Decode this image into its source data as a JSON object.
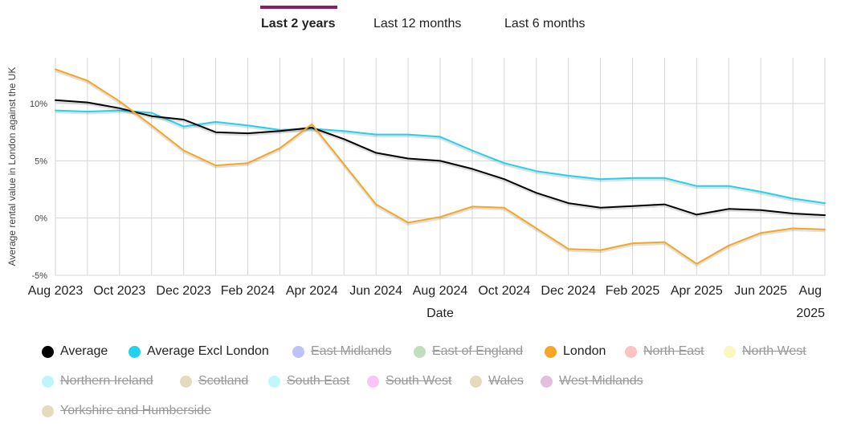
{
  "tabs": [
    {
      "label": "Last 2 years",
      "active": true
    },
    {
      "label": "Last 12 months",
      "active": false
    },
    {
      "label": "Last 6 months",
      "active": false
    }
  ],
  "accent_color": "#8b1e5e",
  "chart_data": {
    "type": "line",
    "xlabel": "Date",
    "ylabel": "Average rental value in London against the UK",
    "ylim": [
      -5,
      14
    ],
    "yticks": [
      -5,
      0,
      5,
      10
    ],
    "ytick_labels": [
      "-5%",
      "0%",
      "5%",
      "10%"
    ],
    "x": [
      "Aug 2023",
      "Sep 2023",
      "Oct 2023",
      "Nov 2023",
      "Dec 2023",
      "Jan 2024",
      "Feb 2024",
      "Mar 2024",
      "Apr 2024",
      "May 2024",
      "Jun 2024",
      "Jul 2024",
      "Aug 2024",
      "Sep 2024",
      "Oct 2024",
      "Nov 2024",
      "Dec 2024",
      "Jan 2025",
      "Feb 2025",
      "Mar 2025",
      "Apr 2025",
      "May 2025",
      "Jun 2025",
      "Jul 2025",
      "Aug 2025"
    ],
    "xtick_labels": [
      {
        "label": "Aug 2023",
        "index": 0
      },
      {
        "label": "Oct 2023",
        "index": 2
      },
      {
        "label": "Dec 2023",
        "index": 4
      },
      {
        "label": "Feb 2024",
        "index": 6
      },
      {
        "label": "Apr 2024",
        "index": 8
      },
      {
        "label": "Jun 2024",
        "index": 10
      },
      {
        "label": "Aug 2024",
        "index": 12
      },
      {
        "label": "Oct 2024",
        "index": 14
      },
      {
        "label": "Dec 2024",
        "index": 16
      },
      {
        "label": "Feb 2025",
        "index": 18
      },
      {
        "label": "Apr 2025",
        "index": 20
      },
      {
        "label": "Jun 2025",
        "index": 22
      },
      {
        "label": "Aug 2025",
        "index": 24
      }
    ],
    "series": [
      {
        "name": "Average",
        "color": "#000000",
        "values": [
          10.3,
          10.1,
          9.6,
          8.9,
          8.6,
          7.5,
          7.4,
          7.6,
          7.9,
          6.9,
          5.7,
          5.2,
          5.0,
          4.3,
          3.4,
          2.2,
          1.3,
          0.9,
          1.05,
          1.2,
          0.3,
          0.8,
          0.7,
          0.4,
          0.25
        ]
      },
      {
        "name": "Average Excl London",
        "color": "#22d1ee",
        "values": [
          9.4,
          9.3,
          9.4,
          9.2,
          8.0,
          8.4,
          8.1,
          7.7,
          7.8,
          7.6,
          7.3,
          7.3,
          7.1,
          5.9,
          4.8,
          4.1,
          3.7,
          3.4,
          3.5,
          3.5,
          2.8,
          2.8,
          2.3,
          1.7,
          1.3
        ]
      },
      {
        "name": "London",
        "color": "#f5a623",
        "values": [
          13.0,
          12.0,
          10.2,
          8.1,
          5.9,
          4.6,
          4.8,
          6.1,
          8.2,
          4.7,
          1.2,
          -0.4,
          0.1,
          1.0,
          0.9,
          -0.9,
          -2.7,
          -2.8,
          -2.2,
          -2.1,
          -4.0,
          -2.4,
          -1.3,
          -0.9,
          -1.0
        ]
      }
    ]
  },
  "legend": [
    {
      "name": "Average",
      "color": "#000000",
      "enabled": true
    },
    {
      "name": "Average Excl London",
      "color": "#22d1ee",
      "enabled": true
    },
    {
      "name": "East Midlands",
      "color": "#7b86f5",
      "enabled": false
    },
    {
      "name": "East of England",
      "color": "#7fbf7f",
      "enabled": false
    },
    {
      "name": "London",
      "color": "#f5a623",
      "enabled": true
    },
    {
      "name": "North East",
      "color": "#f58a7f",
      "enabled": false
    },
    {
      "name": "North West",
      "color": "#f5ef7f",
      "enabled": false
    },
    {
      "name": "Northern Ireland",
      "color": "#7fecf5",
      "enabled": false
    },
    {
      "name": "Scotland",
      "color": "#c8b87a",
      "enabled": false
    },
    {
      "name": "South East",
      "color": "#7ff0f5",
      "enabled": false
    },
    {
      "name": "South West",
      "color": "#f58af0",
      "enabled": false
    },
    {
      "name": "Wales",
      "color": "#c8b87a",
      "enabled": false
    },
    {
      "name": "West Midlands",
      "color": "#c87fc0",
      "enabled": false
    },
    {
      "name": "Yorkshire and Humberside",
      "color": "#c8b87a",
      "enabled": false
    }
  ]
}
